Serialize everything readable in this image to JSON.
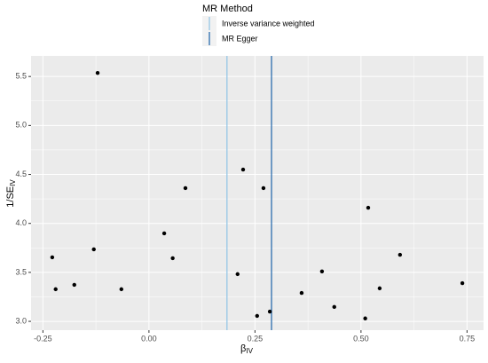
{
  "chart_data": {
    "type": "scatter",
    "x_label": {
      "main": "β",
      "sub": "IV"
    },
    "y_label": {
      "main": "1/SE",
      "sub": "IV"
    },
    "legend_title": "MR Method",
    "x": [
      -0.228,
      -0.22,
      -0.176,
      -0.13,
      -0.121,
      -0.065,
      0.036,
      0.056,
      0.086,
      0.209,
      0.222,
      0.255,
      0.27,
      0.285,
      0.36,
      0.408,
      0.437,
      0.51,
      0.517,
      0.544,
      0.592,
      0.739
    ],
    "y": [
      3.654,
      3.328,
      3.373,
      3.735,
      5.536,
      3.328,
      3.898,
      3.645,
      4.36,
      3.482,
      4.55,
      3.056,
      4.36,
      3.1,
      3.29,
      3.51,
      3.147,
      3.03,
      4.16,
      3.337,
      3.68,
      3.39
    ],
    "color": "#000000",
    "reference_lines": [
      {
        "name": "Inverse variance weighted",
        "color": "#8ec3e6",
        "value": 0.184
      },
      {
        "name": "MR Egger",
        "color": "#1b62a8",
        "value": 0.289
      }
    ],
    "xlim": [
      -0.278,
      0.789
    ],
    "ylim": [
      2.91,
      5.71
    ],
    "xticks": [
      {
        "value": -0.25,
        "label": "-0.25"
      },
      {
        "value": 0,
        "label": "0.00"
      },
      {
        "value": 0.25,
        "label": "0.25"
      },
      {
        "value": 0.5,
        "label": "0.50"
      },
      {
        "value": 0.75,
        "label": "0.75"
      }
    ],
    "yticks": [
      {
        "value": 3,
        "label": "3.0"
      },
      3.5,
      {
        "value": 4,
        "label": "4.0"
      },
      4.5,
      {
        "value": 5,
        "label": "5.0"
      },
      5.5
    ],
    "grid": true
  }
}
